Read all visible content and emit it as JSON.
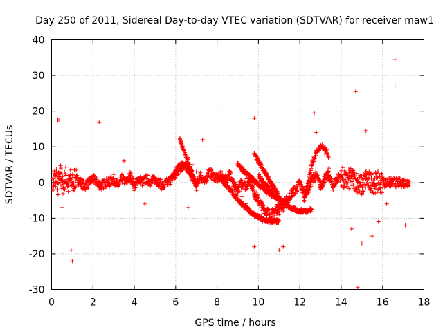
{
  "chart_data": {
    "type": "scatter",
    "title": "Day 250 of 2011, Sidereal Day-to-day VTEC variation (SDTVAR) for receiver maw1",
    "xlabel": "GPS time / hours",
    "ylabel": "SDTVAR / TECUs",
    "xlim": [
      0,
      18
    ],
    "ylim": [
      -30,
      40
    ],
    "xticks": [
      0,
      2,
      4,
      6,
      8,
      10,
      12,
      14,
      16,
      18
    ],
    "yticks": [
      -30,
      -20,
      -10,
      0,
      10,
      20,
      30,
      40
    ],
    "grid": true,
    "marker": "+",
    "color": "#ff0000",
    "series": [
      {
        "name": "SDTVAR",
        "x": [
          0.05,
          0.1,
          0.15,
          0.2,
          0.25,
          0.3,
          0.35,
          0.4,
          0.45,
          0.5,
          0.6,
          0.7,
          0.8,
          0.9,
          1.0,
          1.2,
          1.4,
          1.6,
          1.8,
          2.0,
          2.2,
          2.4,
          2.6,
          2.8,
          3.0,
          3.2,
          3.4,
          3.6,
          3.8,
          4.0,
          4.2,
          4.4,
          4.6,
          4.8,
          5.0,
          5.2,
          5.4,
          5.6,
          5.8,
          6.0,
          6.2,
          6.4,
          6.6,
          6.8,
          7.0,
          7.2,
          7.4,
          7.6,
          7.8,
          8.0,
          8.2,
          8.4,
          8.6,
          8.8,
          9.0,
          9.2,
          9.4,
          9.6,
          9.8,
          10.0,
          10.2,
          10.4,
          10.6,
          10.8,
          11.0,
          11.2,
          11.4,
          11.6,
          11.8,
          12.0,
          12.2,
          12.4,
          12.6,
          12.8,
          13.0,
          13.2,
          13.4,
          13.6,
          13.8,
          14.0,
          14.2,
          14.4,
          14.6,
          14.8,
          15.0,
          15.2,
          15.4,
          15.6,
          15.8,
          16.0,
          16.2,
          16.4,
          16.6,
          16.8,
          17.0,
          17.2,
          8.2,
          8.4,
          8.6,
          8.8,
          9.0,
          9.2,
          9.4,
          9.6,
          9.8,
          10.0,
          10.2,
          10.4,
          10.6,
          10.8,
          11.0,
          9.0,
          9.2,
          9.4,
          9.6,
          9.8,
          10.0,
          10.2,
          10.4,
          10.6,
          10.8,
          11.0,
          11.2,
          11.4,
          9.8,
          10.0,
          10.2,
          10.4,
          10.6,
          10.8,
          11.0,
          6.2,
          6.4,
          6.6,
          6.8,
          7.0,
          12.2,
          12.4,
          12.6,
          12.8,
          13.0,
          13.2,
          13.4,
          0.3,
          0.35,
          1.0,
          0.95,
          2.3,
          4.5,
          6.6,
          7.3,
          9.8,
          9.8,
          11.0,
          11.2,
          12.7,
          12.8,
          14.7,
          14.8,
          15.2,
          15.8,
          16.6,
          16.6,
          17.1,
          0.5,
          3.5,
          14.5,
          15.0,
          15.5,
          16.2
        ],
        "y": [
          1,
          -1,
          2,
          0,
          3,
          -2,
          1,
          0,
          4,
          -1,
          0,
          2,
          -1,
          1,
          0,
          1,
          0,
          -1,
          0,
          1,
          0,
          -1,
          0,
          0,
          1,
          -1,
          1,
          0,
          2,
          -1,
          1,
          0,
          1,
          0,
          1,
          0,
          -1,
          0,
          1,
          2,
          4,
          5,
          4,
          2,
          -1,
          2,
          0,
          3,
          2,
          1,
          2,
          0,
          3,
          -1,
          -2,
          0,
          -1,
          1,
          -3,
          -5,
          -7,
          -8,
          -9,
          -8,
          -7,
          -6,
          -5,
          -3,
          -2,
          0,
          -3,
          -2,
          1,
          2,
          -1,
          1,
          2,
          -1,
          1,
          2,
          0,
          1,
          1,
          0,
          -1,
          1,
          0,
          -1,
          0,
          1,
          -1,
          0,
          1,
          0,
          -1,
          -1,
          1,
          2,
          1,
          0,
          -2,
          -4,
          -6,
          -8,
          -9,
          -10,
          -11,
          -10,
          -9,
          -8,
          -7,
          5,
          3,
          1,
          -1,
          -3,
          -5,
          -7,
          -9,
          -10,
          -10,
          -9,
          -8,
          -6,
          8,
          6,
          4,
          2,
          0,
          -2,
          -4,
          12,
          9,
          7,
          5,
          3,
          -5,
          -8,
          6,
          9,
          10,
          8,
          4,
          17.5,
          17.5,
          -22,
          -19,
          16.8,
          -6,
          -7,
          12,
          18,
          -18,
          -19,
          -18,
          19.5,
          14,
          25.5,
          -29.5,
          14.5,
          -11,
          34.5,
          27,
          -12,
          -7,
          6,
          -13,
          -17,
          -15,
          -6
        ]
      }
    ],
    "extra_points": {
      "note": "dense filler points between series values"
    }
  }
}
